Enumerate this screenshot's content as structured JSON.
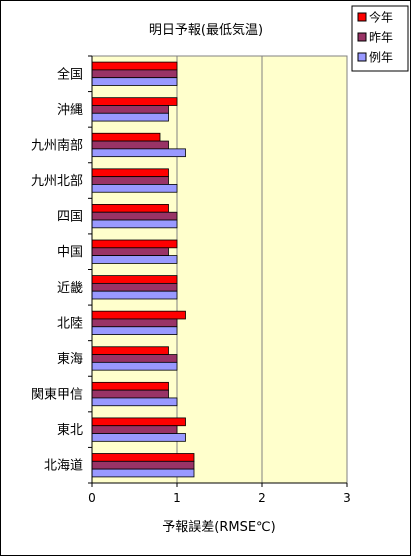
{
  "chart_data": {
    "type": "bar",
    "orientation": "horizontal",
    "title": "明日予報(最低気温)",
    "xlabel": "予報誤差(RMSE℃)",
    "ylabel": "",
    "xlim": [
      0,
      3
    ],
    "x_ticks": [
      "0",
      "1",
      "2",
      "3"
    ],
    "grid": "vertical",
    "legend": "top-right",
    "categories": [
      "全国",
      "沖縄",
      "九州南部",
      "九州北部",
      "四国",
      "中国",
      "近畿",
      "北陸",
      "東海",
      "関東甲信",
      "東北",
      "北海道"
    ],
    "series": [
      {
        "name": "今年",
        "color": "#ff0000",
        "values": [
          1.0,
          1.0,
          0.8,
          0.9,
          0.9,
          1.0,
          1.0,
          1.1,
          0.9,
          0.9,
          1.1,
          1.2
        ]
      },
      {
        "name": "昨年",
        "color": "#993366",
        "values": [
          1.0,
          0.9,
          0.9,
          0.9,
          1.0,
          0.9,
          1.0,
          1.0,
          1.0,
          0.9,
          1.0,
          1.2
        ]
      },
      {
        "name": "例年",
        "color": "#9999ff",
        "values": [
          1.0,
          0.9,
          1.1,
          1.0,
          1.0,
          1.0,
          1.0,
          1.0,
          1.0,
          1.0,
          1.1,
          1.2
        ]
      }
    ],
    "plot_background": "#ffffcc"
  }
}
